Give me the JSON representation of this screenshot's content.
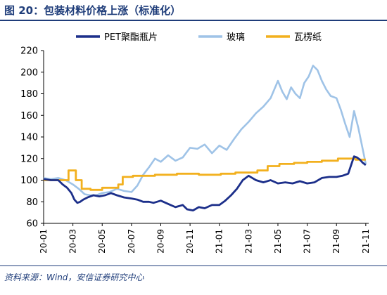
{
  "figure_title": "图 20：包装材料价格上涨（标准化）",
  "source_note": "资料来源：Wind，安信证券研究中心",
  "chart_data": {
    "type": "line",
    "title": "",
    "xlabel": "",
    "ylabel": "",
    "ylim": [
      60,
      220
    ],
    "yticks": [
      60,
      80,
      100,
      120,
      140,
      160,
      180,
      200,
      220
    ],
    "x_tick_labels": [
      "20-01",
      "20-03",
      "20-05",
      "20-07",
      "20-09",
      "20-11",
      "21-01",
      "21-03",
      "21-05",
      "21-07",
      "21-09",
      "21-11"
    ],
    "x_range_months": [
      0,
      22.2
    ],
    "legend_position": "top",
    "series": [
      {
        "name": "PET聚酯瓶片",
        "color": "#1c2f8a",
        "x": [
          0,
          0.5,
          1,
          1.3,
          1.6,
          1.9,
          2.1,
          2.3,
          2.5,
          2.7,
          3,
          3.4,
          3.8,
          4.2,
          4.6,
          5,
          5.5,
          6,
          6.4,
          6.8,
          7.2,
          7.5,
          8,
          8.5,
          9,
          9.5,
          9.8,
          10.2,
          10.6,
          11,
          11.5,
          12,
          12.4,
          12.8,
          13.2,
          13.6,
          14,
          14.5,
          15,
          15.5,
          16,
          16.5,
          17,
          17.5,
          18,
          18.5,
          19,
          19.5,
          20,
          20.4,
          20.8,
          21,
          21.2,
          21.4,
          21.6,
          21.8,
          22
        ],
        "y": [
          101,
          100,
          100,
          96,
          93,
          88,
          82,
          79,
          80,
          82,
          84,
          86,
          85,
          86,
          88,
          86,
          84,
          83,
          82,
          80,
          80,
          79,
          81,
          78,
          75,
          77,
          73,
          72,
          75,
          74,
          77,
          77,
          81,
          86,
          92,
          100,
          104,
          100,
          98,
          100,
          97,
          98,
          97,
          99,
          97,
          98,
          102,
          103,
          103,
          104,
          106,
          114,
          122,
          121,
          119,
          116,
          114
        ]
      },
      {
        "name": "玻璃",
        "color": "#9fc3e7",
        "x": [
          0,
          0.5,
          1,
          1.5,
          2,
          2.4,
          2.8,
          3.2,
          3.6,
          4,
          4.5,
          5,
          5.5,
          6,
          6.4,
          6.8,
          7.2,
          7.6,
          8,
          8.5,
          9,
          9.5,
          10,
          10.5,
          11,
          11.5,
          12,
          12.5,
          13,
          13.5,
          14,
          14.5,
          15,
          15.5,
          16,
          16.3,
          16.6,
          16.9,
          17.2,
          17.5,
          17.8,
          18.1,
          18.4,
          18.7,
          19,
          19.3,
          19.6,
          20,
          20.3,
          20.6,
          20.9,
          21.2,
          21.5,
          21.8,
          22
        ],
        "y": [
          102,
          101,
          102,
          100,
          96,
          92,
          87,
          86,
          86,
          88,
          89,
          92,
          90,
          89,
          95,
          105,
          112,
          120,
          117,
          123,
          118,
          121,
          130,
          129,
          133,
          125,
          132,
          128,
          138,
          147,
          154,
          162,
          168,
          176,
          192,
          182,
          175,
          186,
          180,
          176,
          190,
          196,
          206,
          202,
          192,
          184,
          178,
          176,
          165,
          152,
          140,
          164,
          148,
          128,
          115
        ]
      },
      {
        "name": "瓦楞纸",
        "color": "#f2b01e",
        "x": [
          0,
          1.7,
          1.7,
          2.2,
          2.2,
          2.6,
          2.6,
          3.2,
          3.2,
          4,
          4,
          5.1,
          5.1,
          5.4,
          5.4,
          6.1,
          6.1,
          7.6,
          7.6,
          9.1,
          9.1,
          10.6,
          10.6,
          12.1,
          12.1,
          13.1,
          13.1,
          14.6,
          14.6,
          15.3,
          15.3,
          16.1,
          16.1,
          17.1,
          17.1,
          18,
          18,
          19,
          19,
          20.1,
          20.1,
          21.3,
          21.3,
          22
        ],
        "y": [
          100,
          100,
          109,
          109,
          100,
          100,
          92,
          92,
          91,
          91,
          93,
          93,
          96,
          96,
          103,
          103,
          104,
          104,
          105,
          105,
          106,
          106,
          105,
          105,
          106,
          106,
          107,
          107,
          109,
          109,
          113,
          113,
          115,
          115,
          116,
          116,
          117,
          117,
          118,
          118,
          120,
          120,
          119,
          119
        ]
      }
    ]
  }
}
